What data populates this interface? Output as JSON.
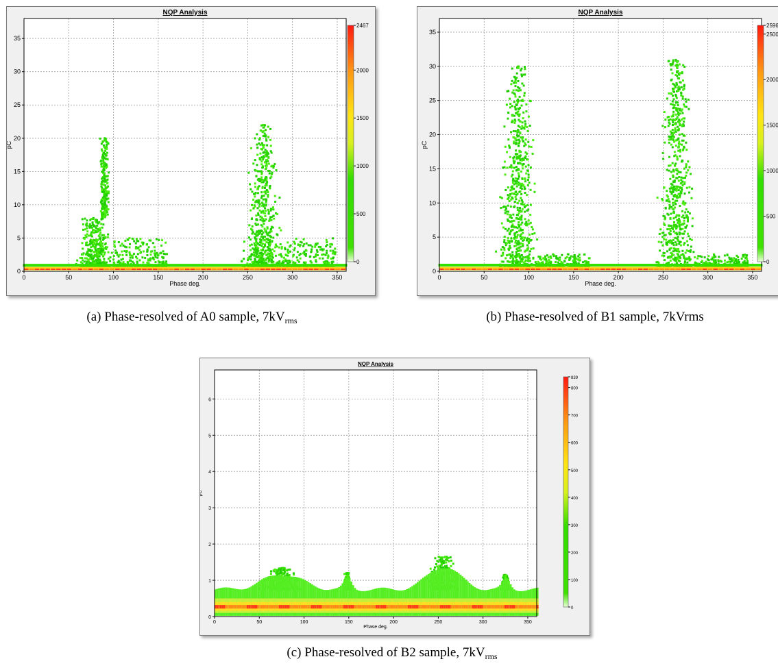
{
  "chart_data": [
    {
      "type": "heatmap",
      "title": "NQP Analysis",
      "xlabel": "Phase deg.",
      "ylabel": "pC",
      "xlim": [
        0,
        360
      ],
      "ylim": [
        0,
        38
      ],
      "x_ticks": [
        0,
        50,
        100,
        150,
        200,
        250,
        300,
        350
      ],
      "y_ticks": [
        0,
        5,
        10,
        15,
        20,
        25,
        30,
        35
      ],
      "colorbar": {
        "min": 0,
        "max": 2467,
        "ticks": [
          0,
          500,
          1000,
          1500,
          2000
        ],
        "max_label": "2467"
      },
      "baseline_pc": 0.5,
      "clusters": [
        {
          "phase_center": 80,
          "phase_width": 25,
          "peak_pc": 20,
          "density": "high"
        },
        {
          "phase_center": 268,
          "phase_width": 30,
          "peak_pc": 22,
          "density": "high"
        }
      ],
      "caption": {
        "prefix": "(a) Phase-resolved of A0 sample, 7kV",
        "sub": "rms"
      }
    },
    {
      "type": "heatmap",
      "title": "NQP Analysis",
      "xlabel": "Phase deg.",
      "ylabel": "pC",
      "xlim": [
        0,
        360
      ],
      "ylim": [
        0,
        37
      ],
      "x_ticks": [
        0,
        50,
        100,
        150,
        200,
        250,
        300,
        350
      ],
      "y_ticks": [
        0,
        5,
        10,
        15,
        20,
        25,
        30,
        35
      ],
      "colorbar": {
        "min": 0,
        "max": 2596,
        "ticks": [
          0,
          500,
          1000,
          1500,
          2000,
          2500
        ],
        "max_label": "2596"
      },
      "baseline_pc": 0.5,
      "clusters": [
        {
          "phase_center": 88,
          "phase_width": 30,
          "peak_pc": 30,
          "density": "high"
        },
        {
          "phase_center": 265,
          "phase_width": 30,
          "peak_pc": 31,
          "density": "high"
        }
      ],
      "caption": {
        "prefix": "(b) Phase-resolved of B1 sample, 7kVrms",
        "sub": ""
      }
    },
    {
      "type": "heatmap",
      "title": "NQP Analysis",
      "xlabel": "Phase deg.",
      "ylabel": "pC",
      "xlim": [
        0,
        360
      ],
      "ylim": [
        0,
        6.8
      ],
      "x_ticks": [
        0,
        50,
        100,
        150,
        200,
        250,
        300,
        350
      ],
      "y_ticks": [
        0,
        1,
        2,
        3,
        4,
        5,
        6
      ],
      "colorbar": {
        "min": 0,
        "max": 839,
        "ticks": [
          0,
          100,
          200,
          300,
          400,
          500,
          600,
          700,
          800
        ],
        "max_label": "839"
      },
      "baseline_pc": 0.28,
      "band_top_pc": 0.75,
      "clusters": [
        {
          "phase_center": 75,
          "phase_width": 30,
          "peak_pc": 1.35,
          "density": "low"
        },
        {
          "phase_center": 148,
          "phase_width": 6,
          "peak_pc": 1.2,
          "density": "low"
        },
        {
          "phase_center": 255,
          "phase_width": 25,
          "peak_pc": 1.65,
          "density": "low"
        },
        {
          "phase_center": 325,
          "phase_width": 6,
          "peak_pc": 1.15,
          "density": "low"
        }
      ],
      "caption": {
        "prefix": "(c) Phase-resolved of B2 sample, 7kV",
        "sub": "rms"
      }
    }
  ]
}
